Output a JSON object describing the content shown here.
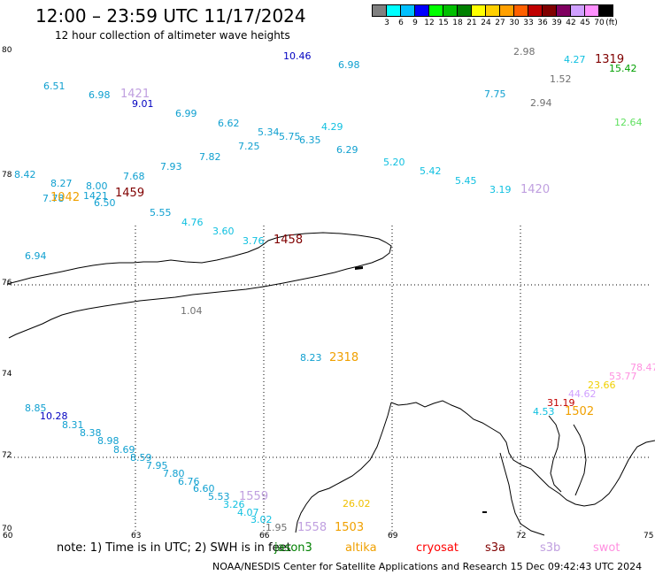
{
  "header": {
    "title": "12:00 – 23:59 UTC 11/17/2024",
    "subtitle": "12 hour collection of altimeter wave heights"
  },
  "legend": {
    "colors": [
      "#808080",
      "#00ffff",
      "#00c0ff",
      "#0000ff",
      "#00ff00",
      "#00c000",
      "#008000",
      "#ffff00",
      "#ffd000",
      "#ffa000",
      "#ff6000",
      "#c00000",
      "#800000",
      "#800060",
      "#d0a0ff",
      "#ff90ff",
      "#000000"
    ],
    "labels": [
      "3",
      "6",
      "9",
      "12",
      "15",
      "18",
      "21",
      "24",
      "27",
      "30",
      "33",
      "36",
      "39",
      "42",
      "45",
      "70",
      "(ft)"
    ]
  },
  "axes": {
    "lat_labels": [
      "80",
      "78",
      "76",
      "74",
      "72",
      "70"
    ],
    "lon_labels": [
      "60",
      "63",
      "66",
      "69",
      "72",
      "75"
    ]
  },
  "wave_labels": [
    {
      "text": "10.46",
      "color": "#0000c0"
    },
    {
      "text": "6.98",
      "color": "#10a0d0"
    },
    {
      "text": "2.98",
      "color": "#707070"
    },
    {
      "text": "4.27",
      "color": "#10c0e0"
    },
    {
      "text": "1319",
      "color": "#800000"
    },
    {
      "text": "15.42",
      "color": "#00a000"
    },
    {
      "text": "1.52",
      "color": "#707070"
    },
    {
      "text": "6.51",
      "color": "#10a0d0"
    },
    {
      "text": "6.98",
      "color": "#10a0d0"
    },
    {
      "text": "1421",
      "color": "#c0a0e0"
    },
    {
      "text": "9.01",
      "color": "#0000c0"
    },
    {
      "text": "7.75",
      "color": "#10a0d0"
    },
    {
      "text": "2.94",
      "color": "#707070"
    },
    {
      "text": "6.99",
      "color": "#10a0d0"
    },
    {
      "text": "6.62",
      "color": "#10a0d0"
    },
    {
      "text": "12.64",
      "color": "#60e060"
    },
    {
      "text": "5.34",
      "color": "#10a0d0"
    },
    {
      "text": "5.75",
      "color": "#10a0d0"
    },
    {
      "text": "4.29",
      "color": "#10c0e0"
    },
    {
      "text": "6.35",
      "color": "#10a0d0"
    },
    {
      "text": "7.25",
      "color": "#10a0d0"
    },
    {
      "text": "6.29",
      "color": "#10a0d0"
    },
    {
      "text": "7.82",
      "color": "#10a0d0"
    },
    {
      "text": "5.20",
      "color": "#10c0e0"
    },
    {
      "text": "7.93",
      "color": "#10a0d0"
    },
    {
      "text": "5.42",
      "color": "#10c0e0"
    },
    {
      "text": "8.42",
      "color": "#10a0d0"
    },
    {
      "text": "7.68",
      "color": "#10a0d0"
    },
    {
      "text": "5.45",
      "color": "#10c0e0"
    },
    {
      "text": "8.27",
      "color": "#10a0d0"
    },
    {
      "text": "8.00",
      "color": "#10a0d0"
    },
    {
      "text": "3.19",
      "color": "#10c0e0"
    },
    {
      "text": "1420",
      "color": "#c0a0e0"
    },
    {
      "text": "1459",
      "color": "#800000"
    },
    {
      "text": "7.78",
      "color": "#10a0d0"
    },
    {
      "text": "1042",
      "color": "#f0a000"
    },
    {
      "text": "1421",
      "color": "#10a0d0"
    },
    {
      "text": "6.50",
      "color": "#10a0d0"
    },
    {
      "text": "5.55",
      "color": "#10a0d0"
    },
    {
      "text": "4.76",
      "color": "#10c0e0"
    },
    {
      "text": "3.60",
      "color": "#10c0e0"
    },
    {
      "text": "3.76",
      "color": "#10c0e0"
    },
    {
      "text": "1458",
      "color": "#800000"
    },
    {
      "text": "6.94",
      "color": "#10a0d0"
    },
    {
      "text": "1.04",
      "color": "#707070"
    },
    {
      "text": "8.23",
      "color": "#10a0d0"
    },
    {
      "text": "2318",
      "color": "#f0a000"
    },
    {
      "text": "78.47",
      "color": "#ff90e0"
    },
    {
      "text": "53.77",
      "color": "#ff90e0"
    },
    {
      "text": "23.66",
      "color": "#f0d000"
    },
    {
      "text": "44.62",
      "color": "#d0a0ff"
    },
    {
      "text": "31.19",
      "color": "#c00000"
    },
    {
      "text": "4.53",
      "color": "#10c0e0"
    },
    {
      "text": "1502",
      "color": "#f0a000"
    },
    {
      "text": "8.85",
      "color": "#10a0d0"
    },
    {
      "text": "10.28",
      "color": "#0000c0"
    },
    {
      "text": "8.31",
      "color": "#10a0d0"
    },
    {
      "text": "8.38",
      "color": "#10a0d0"
    },
    {
      "text": "8.98",
      "color": "#10a0d0"
    },
    {
      "text": "8.69",
      "color": "#10a0d0"
    },
    {
      "text": "8.59",
      "color": "#10a0d0"
    },
    {
      "text": "7.95",
      "color": "#10a0d0"
    },
    {
      "text": "7.80",
      "color": "#10a0d0"
    },
    {
      "text": "6.76",
      "color": "#10a0d0"
    },
    {
      "text": "6.60",
      "color": "#10a0d0"
    },
    {
      "text": "5.53",
      "color": "#10a0d0"
    },
    {
      "text": "1559",
      "color": "#c0a0e0"
    },
    {
      "text": "3.26",
      "color": "#10c0e0"
    },
    {
      "text": "4.07",
      "color": "#10c0e0"
    },
    {
      "text": "26.02",
      "color": "#f0c000"
    },
    {
      "text": "3.02",
      "color": "#10c0e0"
    },
    {
      "text": "1.95",
      "color": "#707070"
    },
    {
      "text": "1558",
      "color": "#c0a0e0"
    },
    {
      "text": "1503",
      "color": "#f0a000"
    }
  ],
  "note": "note:  1) Time is in UTC; 2) SWH is in feet",
  "satellites": [
    {
      "name": "jason3",
      "color": "#008000"
    },
    {
      "name": "altika",
      "color": "#f0a000"
    },
    {
      "name": "cryosat",
      "color": "#ff0000"
    },
    {
      "name": "s3a",
      "color": "#800000"
    },
    {
      "name": "s3b",
      "color": "#c0a0e0"
    },
    {
      "name": "swot",
      "color": "#ff90e0"
    }
  ],
  "footer": "NOAA/NESDIS Center for Satellite Applications and Research    15 Dec 09:42:43 UTC 2024"
}
